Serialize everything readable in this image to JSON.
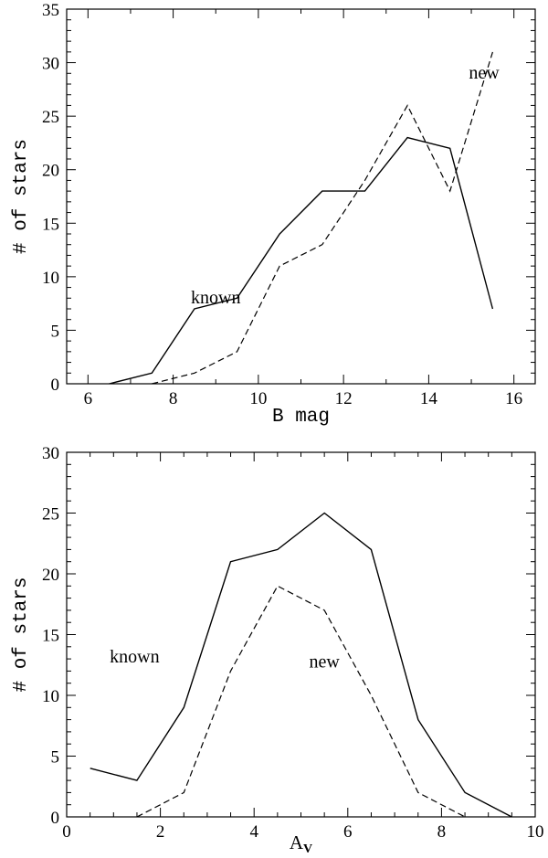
{
  "chart_data": [
    {
      "type": "line",
      "title": "",
      "xlabel": "B mag",
      "ylabel": "# of stars",
      "xlim": [
        5.5,
        16.5
      ],
      "ylim": [
        0,
        35
      ],
      "xticks": [
        6,
        8,
        10,
        12,
        14,
        16
      ],
      "yticks": [
        0,
        5,
        10,
        15,
        20,
        25,
        30,
        35
      ],
      "series": [
        {
          "name": "known",
          "style": "solid",
          "x": [
            6.5,
            7.5,
            8.5,
            9.5,
            10.5,
            11.5,
            12.5,
            13.5,
            14.5,
            15.5
          ],
          "values": [
            0,
            1,
            7,
            8,
            14,
            18,
            18,
            23,
            22,
            7
          ]
        },
        {
          "name": "new",
          "style": "dashed",
          "x": [
            7.5,
            8.5,
            9.5,
            10.5,
            11.5,
            12.5,
            13.5,
            14.5,
            15.5
          ],
          "values": [
            0,
            1,
            3,
            11,
            13,
            19,
            26,
            18,
            31
          ]
        }
      ],
      "annotations": [
        {
          "text": "known",
          "x": 9.0,
          "y": 7.5
        },
        {
          "text": "new",
          "x": 15.3,
          "y": 28.5
        }
      ]
    },
    {
      "type": "line",
      "title": "",
      "xlabel": "A",
      "xlabel_sub": "V",
      "ylabel": "# of stars",
      "xlim": [
        0,
        10
      ],
      "ylim": [
        0,
        30
      ],
      "xticks": [
        0,
        2,
        4,
        6,
        8,
        10
      ],
      "yticks": [
        0,
        5,
        10,
        15,
        20,
        25,
        30
      ],
      "series": [
        {
          "name": "known",
          "style": "solid",
          "x": [
            0.5,
            1.5,
            2.5,
            3.5,
            4.5,
            5.5,
            6.5,
            7.5,
            8.5,
            9.5
          ],
          "values": [
            4,
            3,
            9,
            21,
            22,
            25,
            22,
            8,
            2,
            0
          ]
        },
        {
          "name": "new",
          "style": "dashed",
          "x": [
            1.5,
            2.5,
            3.5,
            4.5,
            5.5,
            6.5,
            7.5,
            8.5
          ],
          "values": [
            0,
            2,
            12,
            19,
            17,
            10,
            2,
            0
          ]
        }
      ],
      "annotations": [
        {
          "text": "known",
          "x": 1.45,
          "y": 12.7
        },
        {
          "text": "new",
          "x": 5.5,
          "y": 12.3
        }
      ]
    }
  ]
}
